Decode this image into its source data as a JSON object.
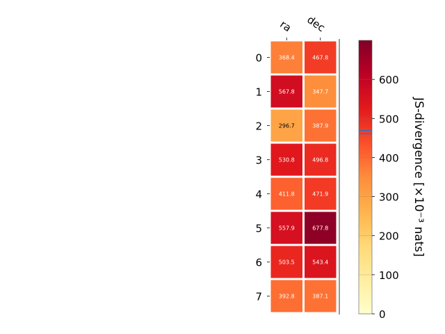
{
  "chart_data": {
    "type": "heatmap",
    "columns": [
      "ra",
      "dec"
    ],
    "rows": [
      "0",
      "1",
      "2",
      "3",
      "4",
      "5",
      "6",
      "7"
    ],
    "values": [
      [
        368.4,
        467.8
      ],
      [
        567.8,
        347.7
      ],
      [
        296.7,
        387.9
      ],
      [
        530.8,
        496.8
      ],
      [
        411.8,
        471.9
      ],
      [
        557.9,
        677.8
      ],
      [
        503.5,
        543.4
      ],
      [
        392.8,
        387.1
      ]
    ],
    "value_labels": [
      [
        "368.4",
        "467.8"
      ],
      [
        "567.8",
        "347.7"
      ],
      [
        "296.7",
        "387.9"
      ],
      [
        "530.8",
        "496.8"
      ],
      [
        "411.8",
        "471.9"
      ],
      [
        "557.9",
        "677.8"
      ],
      [
        "503.5",
        "543.4"
      ],
      [
        "392.8",
        "387.1"
      ]
    ],
    "colormap": "YlOrRd",
    "colorbar": {
      "label": "JS-divergence [×10⁻³ nats]",
      "range": [
        0,
        700
      ],
      "ticks": [
        0,
        100,
        200,
        300,
        400,
        500,
        600
      ],
      "tick_labels": [
        "0",
        "100",
        "200",
        "300",
        "400",
        "500",
        "600"
      ],
      "marker_value": 465,
      "marker_color": "#3b6fb6"
    }
  }
}
